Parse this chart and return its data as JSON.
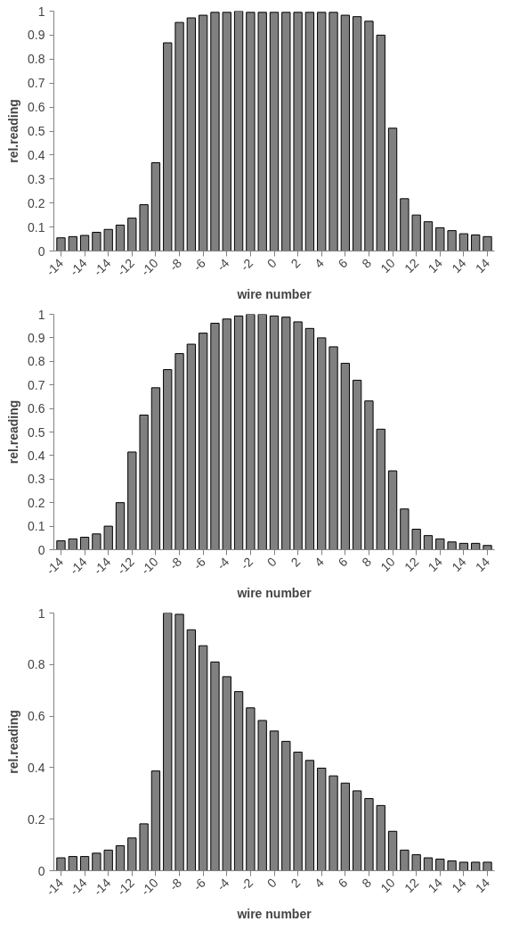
{
  "chart_data": [
    {
      "type": "bar",
      "xlabel": "wire number",
      "ylabel": "rel.reading",
      "color": "#808080",
      "categories": [
        "-14",
        null,
        "-14",
        null,
        "-14",
        null,
        "-12",
        null,
        "-10",
        null,
        "-8",
        null,
        "-6",
        null,
        "-4",
        null,
        "-2",
        null,
        "0",
        null,
        "2",
        null,
        "4",
        null,
        "6",
        null,
        "8",
        null,
        "10",
        null,
        "12",
        null,
        "14",
        null,
        "14",
        null,
        "14"
      ],
      "values": [
        0.055,
        0.06,
        0.065,
        0.078,
        0.09,
        0.108,
        0.137,
        0.193,
        0.368,
        0.868,
        0.953,
        0.972,
        0.983,
        0.995,
        0.995,
        1.0,
        0.995,
        0.995,
        0.995,
        0.995,
        0.995,
        0.995,
        0.995,
        0.995,
        0.983,
        0.977,
        0.958,
        0.9,
        0.512,
        0.218,
        0.15,
        0.122,
        0.097,
        0.085,
        0.072,
        0.067,
        0.06
      ],
      "ylim": [
        0,
        1
      ],
      "yticks": [
        0,
        0.1,
        0.2,
        0.3,
        0.4,
        0.5,
        0.6,
        0.7,
        0.8,
        0.9,
        1
      ]
    },
    {
      "type": "bar",
      "xlabel": "wire number",
      "ylabel": "rel.reading",
      "color": "#808080",
      "categories": [
        "-14",
        null,
        "-14",
        null,
        "-14",
        null,
        "-12",
        null,
        "-10",
        null,
        "-8",
        null,
        "-6",
        null,
        "-4",
        null,
        "-2",
        null,
        "0",
        null,
        "2",
        null,
        "4",
        null,
        "6",
        null,
        "8",
        null,
        "10",
        null,
        "12",
        null,
        "14",
        null,
        "14",
        null,
        "14"
      ],
      "values": [
        0.038,
        0.046,
        0.053,
        0.067,
        0.1,
        0.2,
        0.415,
        0.572,
        0.688,
        0.765,
        0.833,
        0.873,
        0.92,
        0.962,
        0.98,
        0.993,
        1.0,
        1.0,
        0.993,
        0.988,
        0.968,
        0.94,
        0.9,
        0.862,
        0.792,
        0.72,
        0.632,
        0.512,
        0.335,
        0.173,
        0.087,
        0.06,
        0.046,
        0.033,
        0.027,
        0.027,
        0.018
      ],
      "ylim": [
        0,
        1
      ],
      "yticks": [
        0,
        0.1,
        0.2,
        0.3,
        0.4,
        0.5,
        0.6,
        0.7,
        0.8,
        0.9,
        1
      ]
    },
    {
      "type": "bar",
      "xlabel": "wire number",
      "ylabel": "rel.reading",
      "color": "#808080",
      "categories": [
        "-14",
        null,
        "-14",
        null,
        "-14",
        null,
        "-12",
        null,
        "-10",
        null,
        "-8",
        null,
        "-6",
        null,
        "-4",
        null,
        "-2",
        null,
        "0",
        null,
        "2",
        null,
        "4",
        null,
        "6",
        null,
        "8",
        null,
        "10",
        null,
        "12",
        null,
        "14",
        null,
        "14",
        null,
        "14"
      ],
      "values": [
        0.05,
        0.055,
        0.055,
        0.068,
        0.08,
        0.097,
        0.127,
        0.182,
        0.387,
        1.0,
        0.995,
        0.935,
        0.873,
        0.81,
        0.753,
        0.695,
        0.632,
        0.583,
        0.542,
        0.502,
        0.46,
        0.428,
        0.398,
        0.368,
        0.34,
        0.31,
        0.28,
        0.253,
        0.153,
        0.08,
        0.062,
        0.05,
        0.045,
        0.038,
        0.033,
        0.033,
        0.033
      ],
      "ylim": [
        0,
        1
      ],
      "yticks": [
        0,
        0.2,
        0.4,
        0.6,
        0.8,
        1
      ]
    }
  ]
}
